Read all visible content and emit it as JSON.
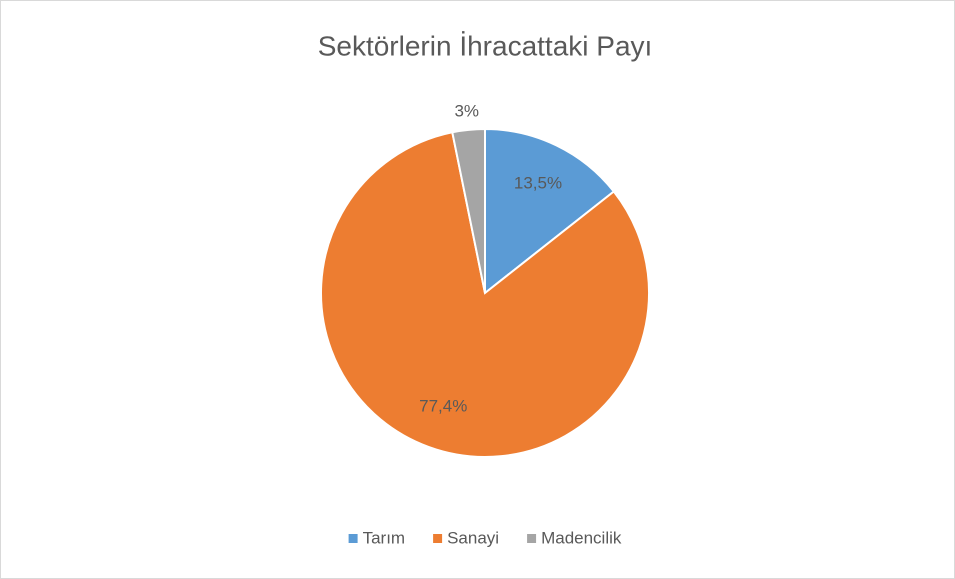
{
  "chart_data": {
    "type": "pie",
    "title": "Sektörlerin İhracattaki Payı",
    "categories": [
      "Tarım",
      "Sanayi",
      "Madencilik"
    ],
    "values": [
      13.5,
      77.4,
      3
    ],
    "value_labels": [
      "13,5%",
      "77,4%",
      "3%"
    ],
    "colors": [
      "#5b9bd5",
      "#ed7d31",
      "#a5a5a5"
    ],
    "legend": "bottom"
  }
}
